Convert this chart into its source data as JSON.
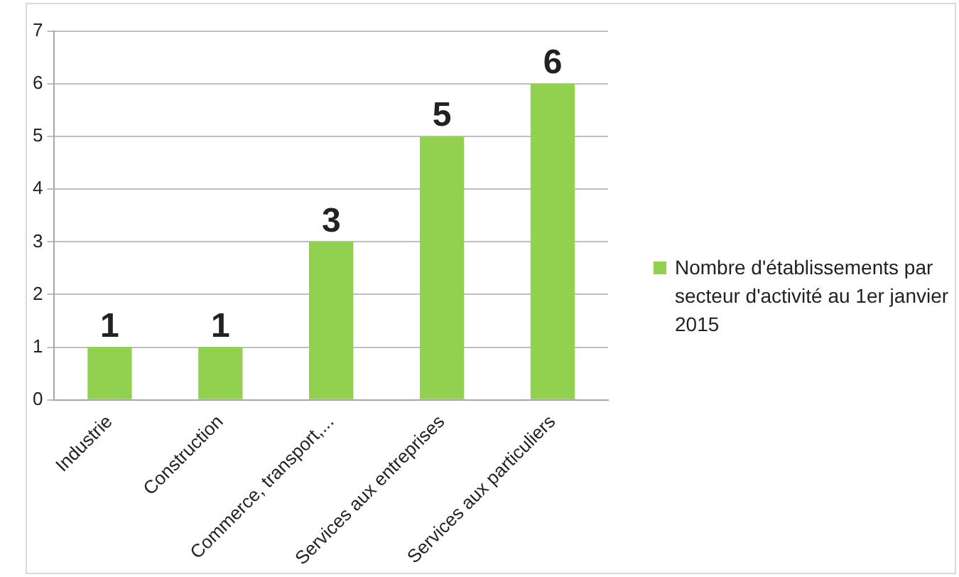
{
  "chart_data": {
    "type": "bar",
    "categories": [
      "Industrie",
      "Construction",
      "Commerce, transport,...",
      "Services aux entreprises",
      "Services aux particuliers"
    ],
    "series": [
      {
        "name": "Nombre d'établissements par secteur d'activité au 1er janvier 2015",
        "color": "#92d050",
        "values": [
          1,
          1,
          3,
          5,
          6
        ]
      }
    ],
    "ylim": [
      0,
      7
    ],
    "yticks": [
      0,
      1,
      2,
      3,
      4,
      5,
      6,
      7
    ],
    "grid": "y",
    "legend": "right",
    "data_labels": true
  }
}
